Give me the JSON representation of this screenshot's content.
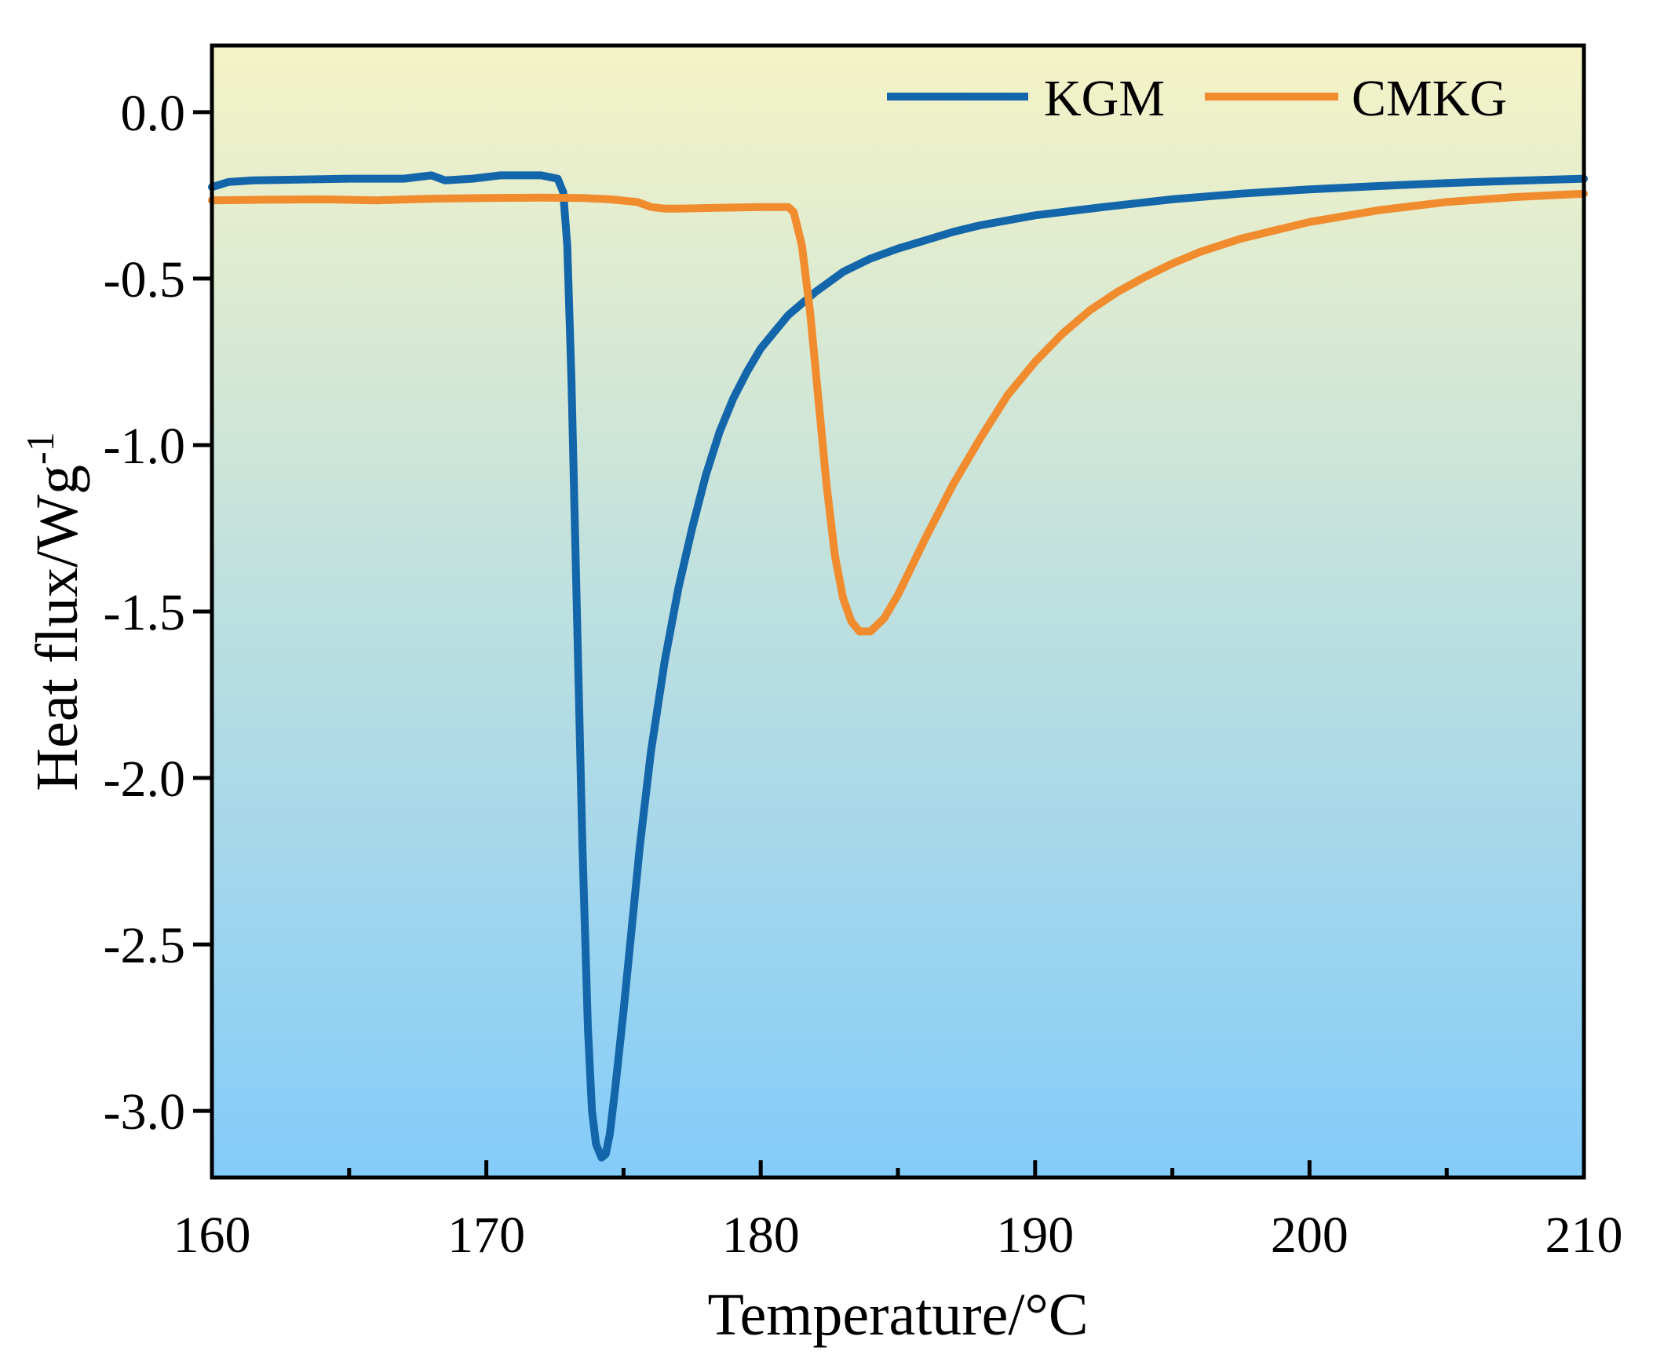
{
  "chart_data": {
    "type": "line",
    "xlabel": "Temperature/°C",
    "ylabel_main": "Heat flux/Wg",
    "ylabel_sup": "-1",
    "xlim": [
      160,
      210
    ],
    "ylim": [
      -3.2,
      0.2
    ],
    "xticks": [
      160,
      170,
      180,
      190,
      200,
      210
    ],
    "xtick_labels": [
      "160",
      "170",
      "180",
      "190",
      "200",
      "210"
    ],
    "xminor_ticks": [
      165,
      175,
      185,
      195,
      205
    ],
    "yticks": [
      0.0,
      -0.5,
      -1.0,
      -1.5,
      -2.0,
      -2.5,
      -3.0
    ],
    "ytick_labels": [
      "0.0",
      "-0.5",
      "-1.0",
      "-1.5",
      "-2.0",
      "-2.5",
      "-3.0"
    ],
    "legend_position": "top-right",
    "background_gradient": [
      "#f5f3c6",
      "#84ccfa"
    ],
    "series": [
      {
        "name": "KGM",
        "color": "#1366aa",
        "x": [
          160,
          160.6,
          161.5,
          163,
          165,
          167,
          168,
          168.5,
          169.5,
          170.5,
          172,
          172.6,
          172.8,
          172.95,
          173.1,
          173.3,
          173.5,
          173.7,
          173.85,
          174.0,
          174.2,
          174.35,
          174.5,
          174.7,
          175.0,
          175.3,
          175.6,
          176.0,
          176.5,
          177.0,
          177.5,
          178.0,
          178.5,
          179.0,
          179.5,
          180.0,
          180.5,
          181.0,
          182.0,
          183.0,
          184.0,
          185.0,
          186.0,
          187.0,
          188.0,
          190.0,
          192.5,
          195.0,
          197.5,
          200.0,
          202.5,
          205.0,
          207.5,
          210.0
        ],
        "y": [
          -0.225,
          -0.21,
          -0.205,
          -0.203,
          -0.2,
          -0.2,
          -0.19,
          -0.205,
          -0.2,
          -0.19,
          -0.19,
          -0.2,
          -0.24,
          -0.4,
          -0.8,
          -1.5,
          -2.2,
          -2.75,
          -3.0,
          -3.1,
          -3.14,
          -3.13,
          -3.07,
          -2.93,
          -2.7,
          -2.45,
          -2.2,
          -1.92,
          -1.65,
          -1.43,
          -1.25,
          -1.09,
          -0.96,
          -0.86,
          -0.78,
          -0.71,
          -0.66,
          -0.61,
          -0.54,
          -0.48,
          -0.44,
          -0.41,
          -0.385,
          -0.36,
          -0.34,
          -0.31,
          -0.285,
          -0.262,
          -0.245,
          -0.232,
          -0.222,
          -0.213,
          -0.206,
          -0.2
        ]
      },
      {
        "name": "CMKG",
        "color": "#f18c2e",
        "x": [
          160,
          162,
          164,
          166,
          168,
          170,
          172,
          173.5,
          174.5,
          175.5,
          176.0,
          176.5,
          177.0,
          178.0,
          180.0,
          181.0,
          181.2,
          181.5,
          181.8,
          182.1,
          182.4,
          182.7,
          183.0,
          183.3,
          183.6,
          184.0,
          184.5,
          185.0,
          186.0,
          187.0,
          188.0,
          189.0,
          190.0,
          191.0,
          192.0,
          193.0,
          194.0,
          195.0,
          196.0,
          197.5,
          200.0,
          202.5,
          205.0,
          207.5,
          210.0
        ],
        "y": [
          -0.265,
          -0.263,
          -0.262,
          -0.265,
          -0.26,
          -0.258,
          -0.257,
          -0.258,
          -0.262,
          -0.27,
          -0.285,
          -0.29,
          -0.29,
          -0.288,
          -0.285,
          -0.285,
          -0.3,
          -0.4,
          -0.6,
          -0.86,
          -1.12,
          -1.33,
          -1.46,
          -1.53,
          -1.56,
          -1.56,
          -1.52,
          -1.45,
          -1.28,
          -1.12,
          -0.98,
          -0.85,
          -0.75,
          -0.665,
          -0.595,
          -0.54,
          -0.495,
          -0.455,
          -0.42,
          -0.38,
          -0.33,
          -0.295,
          -0.27,
          -0.255,
          -0.245
        ]
      }
    ]
  }
}
